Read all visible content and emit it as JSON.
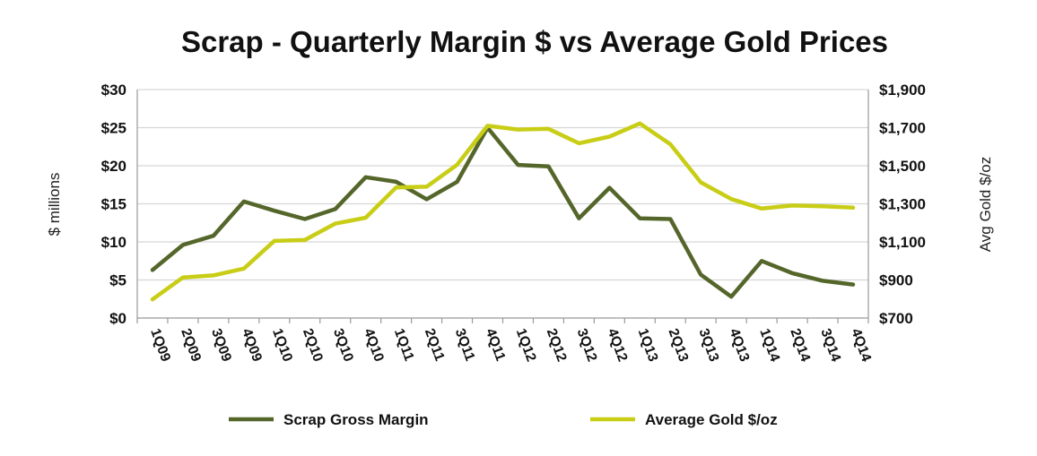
{
  "chart_data": {
    "type": "line",
    "title": "Scrap - Quarterly Margin $ vs Average Gold Prices",
    "ylabel": "$ millions",
    "y2label": "Avg Gold $/oz",
    "categories": [
      "1Q09",
      "2Q09",
      "3Q09",
      "4Q09",
      "1Q10",
      "2Q10",
      "3Q10",
      "4Q10",
      "1Q11",
      "2Q11",
      "3Q11",
      "4Q11",
      "1Q12",
      "2Q12",
      "3Q12",
      "4Q12",
      "1Q13",
      "2Q13",
      "3Q13",
      "4Q13",
      "1Q14",
      "2Q14",
      "3Q14",
      "4Q14"
    ],
    "ylim": [
      0,
      30
    ],
    "y2lim": [
      700,
      1900
    ],
    "yticks": [
      0,
      5,
      10,
      15,
      20,
      25,
      30
    ],
    "ytick_labels": [
      "$0",
      "$5",
      "$10",
      "$15",
      "$20",
      "$25",
      "$30"
    ],
    "y2ticks": [
      700,
      900,
      1100,
      1300,
      1500,
      1700,
      1900
    ],
    "y2tick_labels": [
      "$700",
      "$900",
      "$1,100",
      "$1,300",
      "$1,500",
      "$1,700",
      "$1,900"
    ],
    "grid": true,
    "legend_position": "bottom",
    "series": [
      {
        "name": "Scrap Gross Margin",
        "axis": "left",
        "color": "#55662b",
        "values": [
          6.3,
          9.6,
          10.8,
          15.3,
          14.1,
          13.0,
          14.3,
          18.5,
          17.9,
          15.6,
          17.9,
          25.0,
          20.1,
          19.9,
          13.1,
          17.1,
          13.1,
          13.0,
          5.7,
          2.8,
          7.5,
          5.9,
          4.9,
          4.4
        ]
      },
      {
        "name": "Average Gold $/oz",
        "axis": "right",
        "color": "#c8cd16",
        "values": [
          798,
          913,
          924,
          960,
          1105,
          1110,
          1196,
          1227,
          1386,
          1390,
          1505,
          1710,
          1690,
          1694,
          1618,
          1653,
          1722,
          1613,
          1413,
          1325,
          1275,
          1291,
          1287,
          1280
        ]
      }
    ]
  }
}
